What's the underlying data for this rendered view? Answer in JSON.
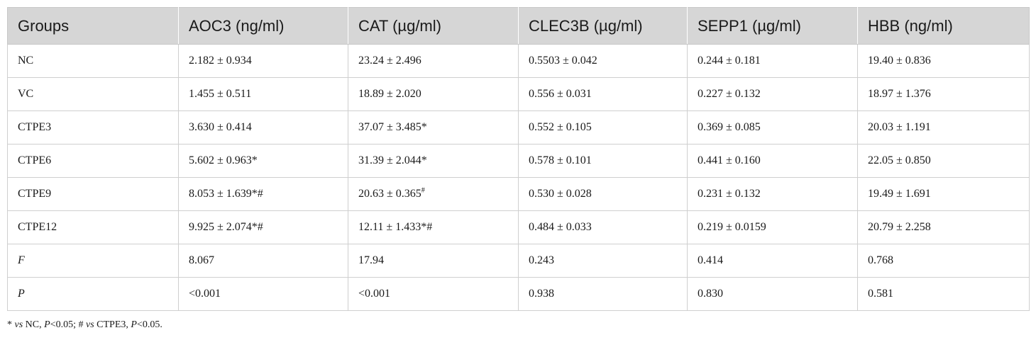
{
  "table": {
    "headers": [
      "Groups",
      "AOC3 (ng/ml)",
      "CAT (µg/ml)",
      "CLEC3B (µg/ml)",
      "SEPP1 (µg/ml)",
      "HBB (ng/ml)"
    ],
    "rows": [
      [
        "NC",
        "2.182 ± 0.934",
        "23.24 ± 2.496",
        "0.5503 ± 0.042",
        "0.244 ± 0.181",
        "19.40 ± 0.836"
      ],
      [
        "VC",
        "1.455 ± 0.511",
        "18.89 ± 2.020",
        "0.556 ± 0.031",
        "0.227 ± 0.132",
        "18.97 ± 1.376"
      ],
      [
        "CTPE3",
        "3.630 ± 0.414",
        "37.07 ± 3.485*",
        "0.552 ± 0.105",
        "0.369 ± 0.085",
        "20.03 ± 1.191"
      ],
      [
        "CTPE6",
        "5.602 ± 0.963*",
        "31.39 ± 2.044*",
        "0.578 ± 0.101",
        "0.441 ± 0.160",
        "22.05 ± 0.850"
      ],
      [
        "CTPE9",
        "8.053 ± 1.639*#",
        "20.63 ± 0.365",
        "0.530 ± 0.028",
        "0.231 ± 0.132",
        "19.49 ± 1.691"
      ],
      [
        "CTPE12",
        "9.925 ± 2.074*#",
        "12.11 ± 1.433*#",
        "0.484 ± 0.033",
        "0.219 ± 0.0159",
        "20.79 ± 2.258"
      ],
      [
        "F",
        "8.067",
        "17.94",
        "0.243",
        "0.414",
        "0.768"
      ],
      [
        "P",
        "<0.001",
        "<0.001",
        "0.938",
        "0.830",
        "0.581"
      ]
    ],
    "superscript_r4c2": "#"
  },
  "footnote": {
    "star": "*",
    "vs1": "vs",
    "part1": " NC, ",
    "p1": "P",
    "part2": "<0.05; # ",
    "vs2": "vs",
    "part3": " CTPE3, ",
    "p2": "P",
    "part4": "<0.05."
  }
}
